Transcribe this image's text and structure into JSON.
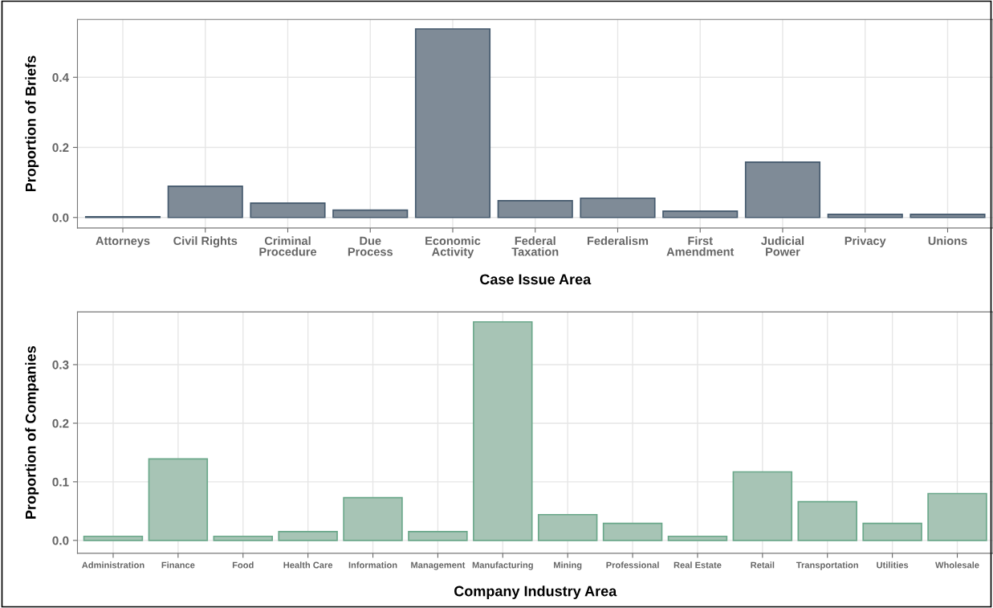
{
  "chart_data": [
    {
      "type": "bar",
      "xlabel": "Case Issue Area",
      "ylabel": "Proportion of Briefs",
      "categories": [
        "Attorneys",
        "Civil Rights",
        "Criminal\nProcedure",
        "Due\nProcess",
        "Economic\nActivity",
        "Federal\nTaxation",
        "Federalism",
        "First\nAmendment",
        "Judicial\nPower",
        "Privacy",
        "Unions"
      ],
      "values": [
        0.002,
        0.089,
        0.041,
        0.021,
        0.538,
        0.048,
        0.055,
        0.018,
        0.158,
        0.009,
        0.009
      ],
      "color": "#7f8b97",
      "ylim": [
        -0.03,
        0.565
      ],
      "yticks": [
        {
          "value": 0,
          "label": "0.0"
        },
        0.2,
        0.4
      ],
      "grid": true
    },
    {
      "type": "bar",
      "xlabel": "Company Industry Area",
      "ylabel": "Proportion of Companies",
      "categories": [
        "Administration",
        "Finance",
        "Food",
        "Health Care",
        "Information",
        "Management",
        "Manufacturing",
        "Mining",
        "Professional",
        "Real Estate",
        "Retail",
        "Transportation",
        "Utilities",
        "Wholesale"
      ],
      "values": [
        0.007,
        0.139,
        0.007,
        0.015,
        0.073,
        0.015,
        0.373,
        0.044,
        0.029,
        0.007,
        0.117,
        0.066,
        0.029,
        0.08
      ],
      "color": "#a7c4b5",
      "ylim": [
        -0.022,
        0.39
      ],
      "yticks": [
        {
          "value": 0,
          "label": "0.0"
        },
        0.1,
        0.2,
        0.3
      ],
      "grid": true
    }
  ]
}
